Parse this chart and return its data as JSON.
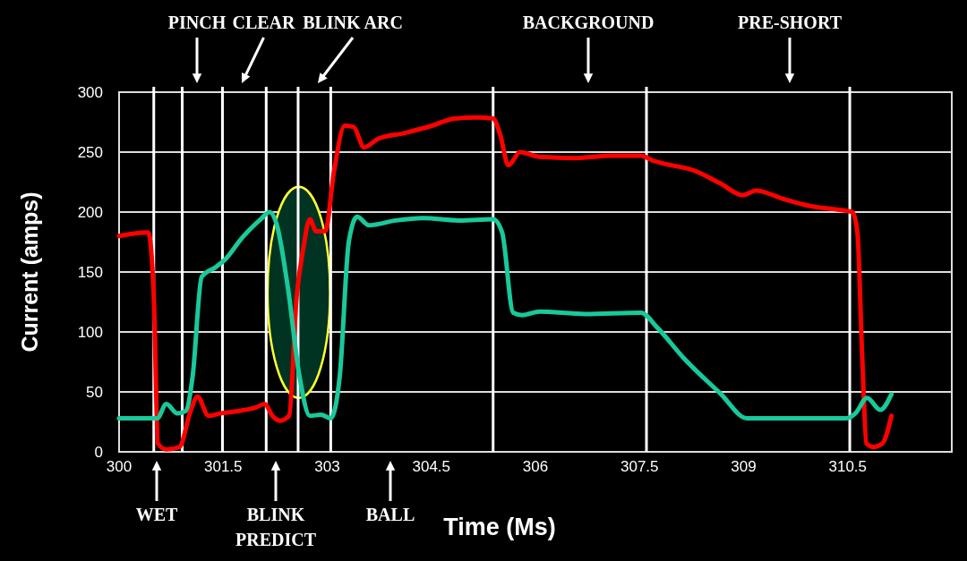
{
  "chart_data": {
    "type": "line",
    "xlabel": "Time (Ms)",
    "ylabel": "Current (amps)",
    "xlim": [
      300,
      312
    ],
    "xticks": [
      300,
      301.5,
      303,
      304.5,
      306,
      307.5,
      309,
      310.5
    ],
    "ylim": [
      0,
      300
    ],
    "yticks": [
      0,
      50,
      100,
      150,
      200,
      250,
      300
    ],
    "grid": "y",
    "line_style": "solid",
    "series": [
      {
        "color": "#ff0000",
        "x": [
          300,
          300.42,
          300.5,
          300.56,
          300.68,
          300.87,
          301.03,
          301.13,
          301.29,
          301.45,
          301.71,
          301.97,
          302.1,
          302.21,
          302.32,
          302.45,
          302.56,
          302.65,
          302.75,
          302.84,
          302.97,
          303.1,
          303.25,
          303.38,
          303.53,
          303.73,
          304.12,
          304.51,
          304.83,
          305.16,
          305.39,
          305.49,
          305.61,
          305.78,
          306.06,
          306.58,
          307.1,
          307.52,
          307.69,
          307.88,
          308.27,
          308.66,
          308.99,
          309.18,
          309.57,
          309.96,
          310.48,
          310.57,
          310.64,
          310.71,
          310.77,
          310.87,
          311,
          311.13
        ],
        "values": [
          180,
          183,
          130,
          7,
          2,
          4,
          34,
          46,
          30,
          32,
          34,
          37,
          40,
          30,
          26,
          30,
          130,
          168,
          194,
          184,
          184,
          235,
          272,
          271,
          254,
          261,
          266,
          272,
          278,
          279,
          278,
          265,
          239,
          250,
          246,
          245,
          247,
          247,
          243,
          240,
          235,
          224,
          214,
          218,
          211,
          205,
          201,
          200,
          183,
          78,
          7,
          4,
          7,
          30
        ]
      },
      {
        "color": "#19c99a",
        "x": [
          300,
          300.55,
          300.68,
          300.84,
          300.96,
          301.06,
          301.19,
          301.39,
          301.52,
          301.78,
          302.04,
          302.17,
          302.27,
          302.43,
          302.6,
          302.75,
          302.91,
          303.05,
          303.18,
          303.31,
          303.43,
          303.6,
          303.99,
          304.38,
          304.9,
          305.39,
          305.52,
          305.68,
          305.81,
          306.06,
          306.71,
          307.52,
          307.75,
          308.14,
          308.66,
          309.05,
          309.7,
          310.48,
          310.61,
          310.78,
          310.97,
          311.13
        ],
        "values": [
          28,
          28,
          40,
          32,
          34,
          63,
          146,
          154,
          160,
          179,
          194,
          200,
          190,
          138,
          63,
          30,
          31,
          28,
          63,
          175,
          196,
          189,
          193,
          195,
          193,
          194,
          183,
          116,
          114,
          117,
          115,
          116,
          104,
          78,
          49,
          28,
          28,
          28,
          32,
          45,
          35,
          48
        ]
      }
    ],
    "ref_lines": [
      {
        "axis": "x",
        "value": 300.5,
        "color": "#ffffff"
      },
      {
        "axis": "x",
        "value": 300.91,
        "color": "#ffffff"
      },
      {
        "axis": "x",
        "value": 301.49,
        "color": "#ffffff"
      },
      {
        "axis": "x",
        "value": 302.12,
        "color": "#ffffff"
      },
      {
        "axis": "x",
        "value": 302.58,
        "color": "#ffffff"
      },
      {
        "axis": "x",
        "value": 303.05,
        "color": "#ffffff"
      },
      {
        "axis": "x",
        "value": 305.39,
        "color": "#ffffff"
      },
      {
        "axis": "x",
        "value": 307.6,
        "color": "#ffffff"
      },
      {
        "axis": "x",
        "value": 310.53,
        "color": "#ffffff"
      }
    ],
    "annotations": [
      "PINCH",
      "CLEAR",
      "BLINK ARC",
      "BACKGROUND",
      "PRE-SHORT",
      "WET",
      "BLINK PREDICT",
      "BALL"
    ]
  }
}
